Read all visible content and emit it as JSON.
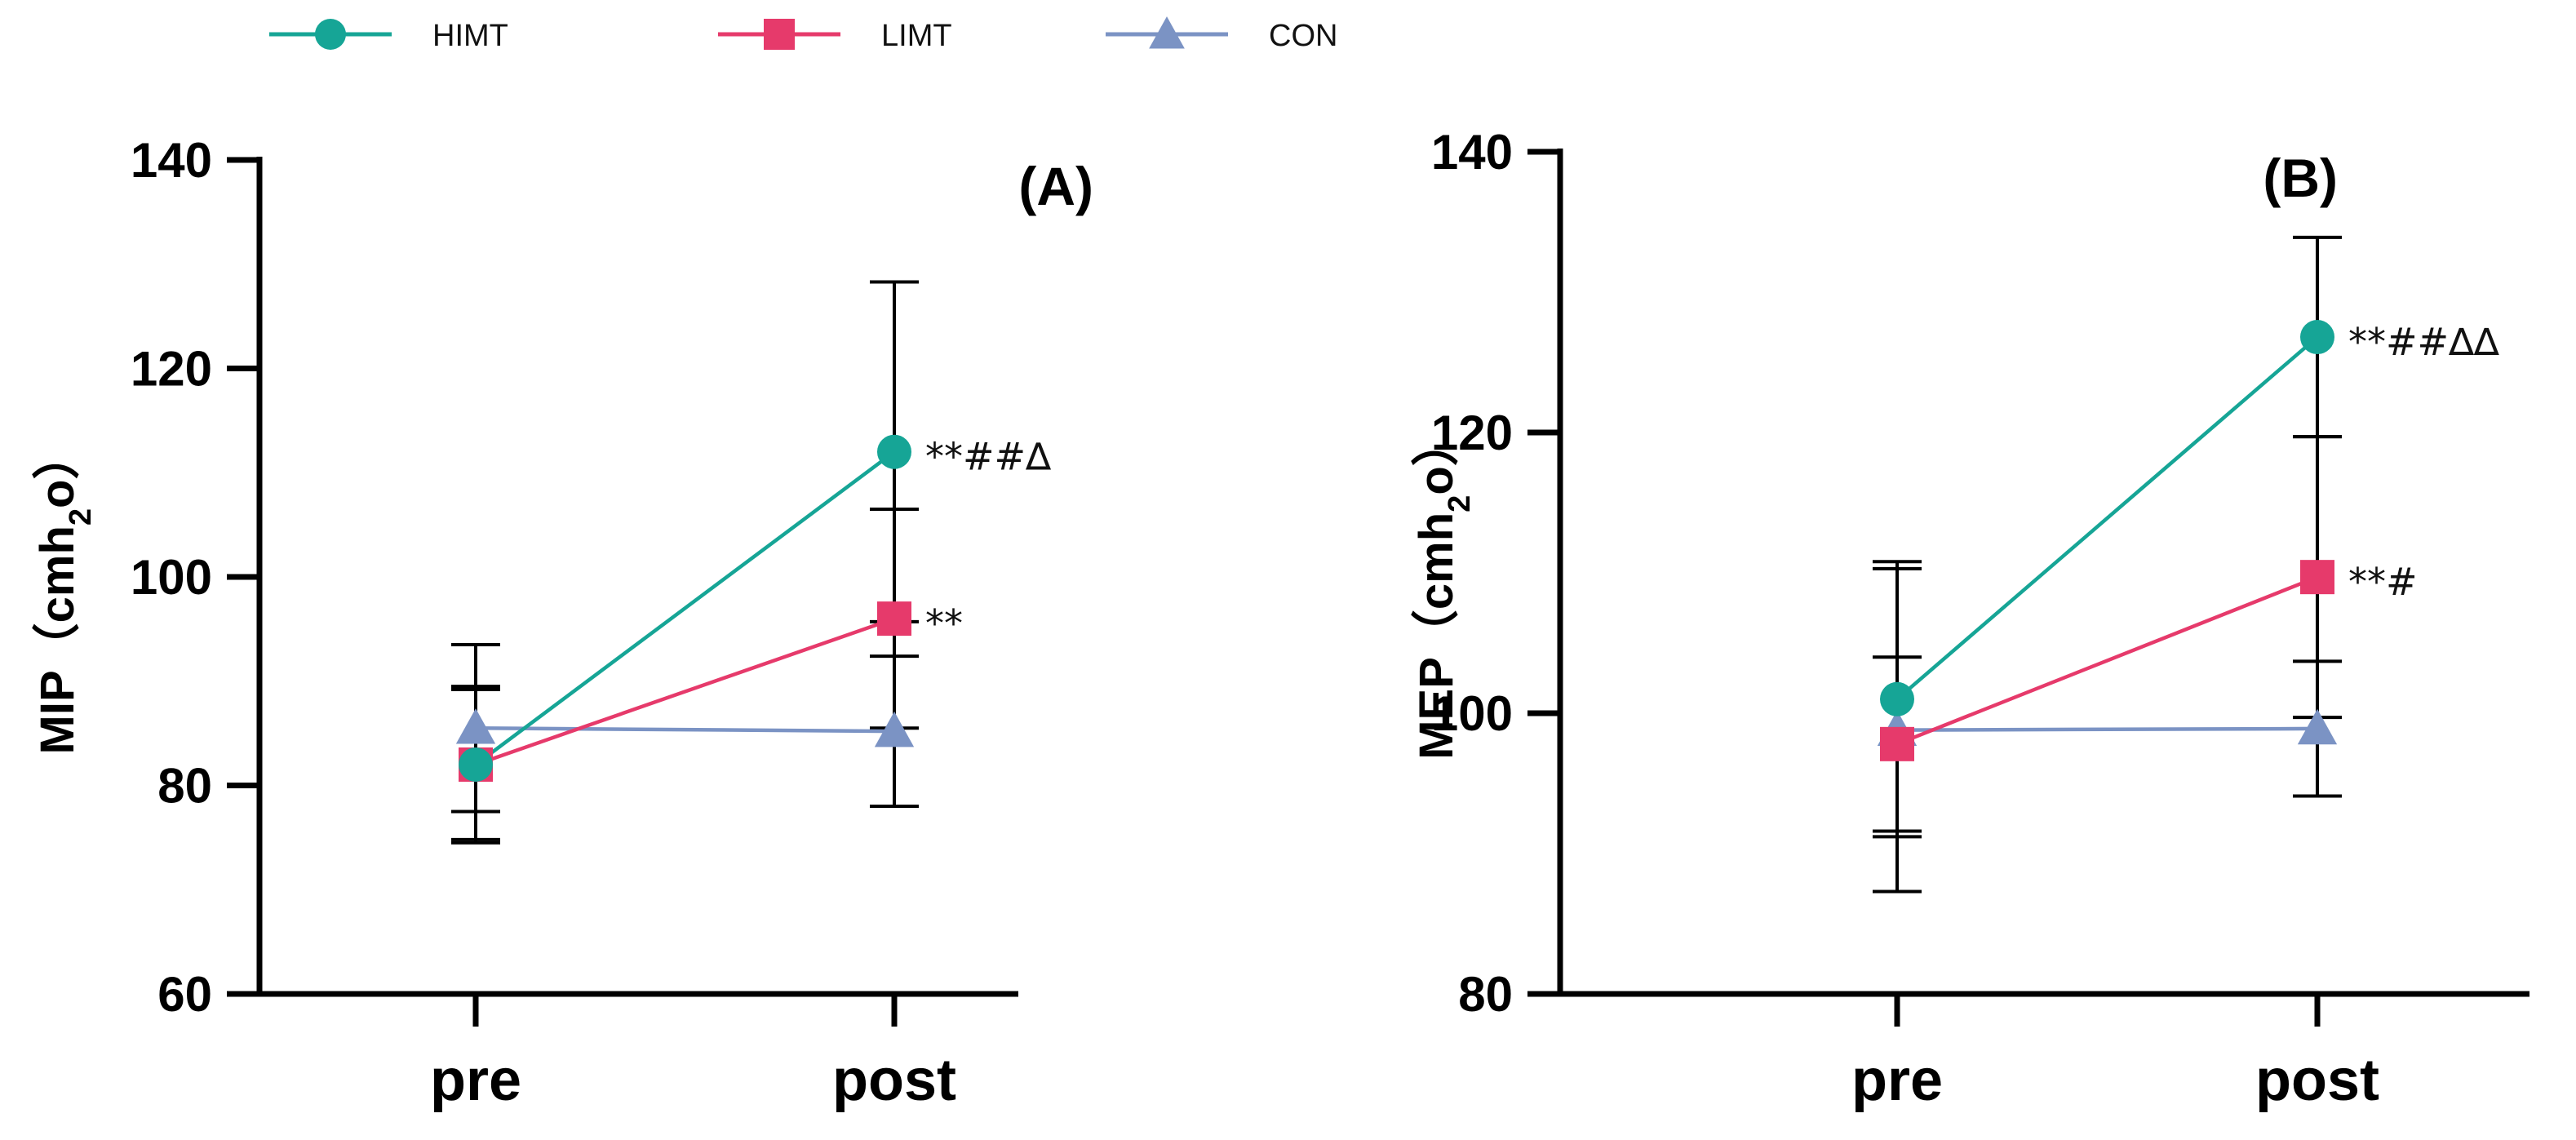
{
  "legend": [
    {
      "name": "HIMT",
      "marker": "circle",
      "color": "#16a596"
    },
    {
      "name": "LIMT",
      "marker": "square",
      "color": "#e63a6b"
    },
    {
      "name": "CON",
      "marker": "triangle",
      "color": "#7b93c4"
    }
  ],
  "chart_data": [
    {
      "type": "line",
      "panel_label": "(A)",
      "title": "",
      "ylabel_main": "MIP",
      "ylabel_unit_prefix": "（cmh",
      "ylabel_unit_sub": "2",
      "ylabel_unit_suffix": "o）",
      "categories": [
        "pre",
        "post"
      ],
      "ylim": [
        60,
        140
      ],
      "yticks": [
        "60",
        "80",
        "100",
        "120",
        "140"
      ],
      "series": [
        {
          "name": "HIMT",
          "values": [
            82,
            112
          ],
          "errors": [
            7.5,
            16.3
          ],
          "annotations": [
            "",
            "**##∆"
          ]
        },
        {
          "name": "LIMT",
          "values": [
            82,
            96
          ],
          "errors": [
            7.2,
            10.5
          ],
          "annotations": [
            "",
            "**"
          ]
        },
        {
          "name": "CON",
          "values": [
            85.5,
            85.2
          ],
          "errors": [
            8,
            7.2
          ],
          "annotations": [
            "",
            ""
          ]
        }
      ]
    },
    {
      "type": "line",
      "panel_label": "(B)",
      "title": "",
      "ylabel_main": "MEP",
      "ylabel_unit_prefix": "（cmh",
      "ylabel_unit_sub": "2",
      "ylabel_unit_suffix": "o）",
      "categories": [
        "pre",
        "post"
      ],
      "ylim": [
        80,
        140
      ],
      "yticks": [
        "80",
        "100",
        "120",
        "140"
      ],
      "series": [
        {
          "name": "HIMT",
          "values": [
            101,
            126.8
          ],
          "errors": [
            9.8,
            7.1
          ],
          "annotations": [
            "",
            "**##∆∆"
          ]
        },
        {
          "name": "LIMT",
          "values": [
            97.8,
            109.7
          ],
          "errors": [
            6.2,
            10
          ],
          "annotations": [
            "",
            "**#"
          ]
        },
        {
          "name": "CON",
          "values": [
            98.8,
            98.9
          ],
          "errors": [
            11.5,
            4.8
          ],
          "annotations": [
            "",
            ""
          ]
        }
      ]
    }
  ]
}
